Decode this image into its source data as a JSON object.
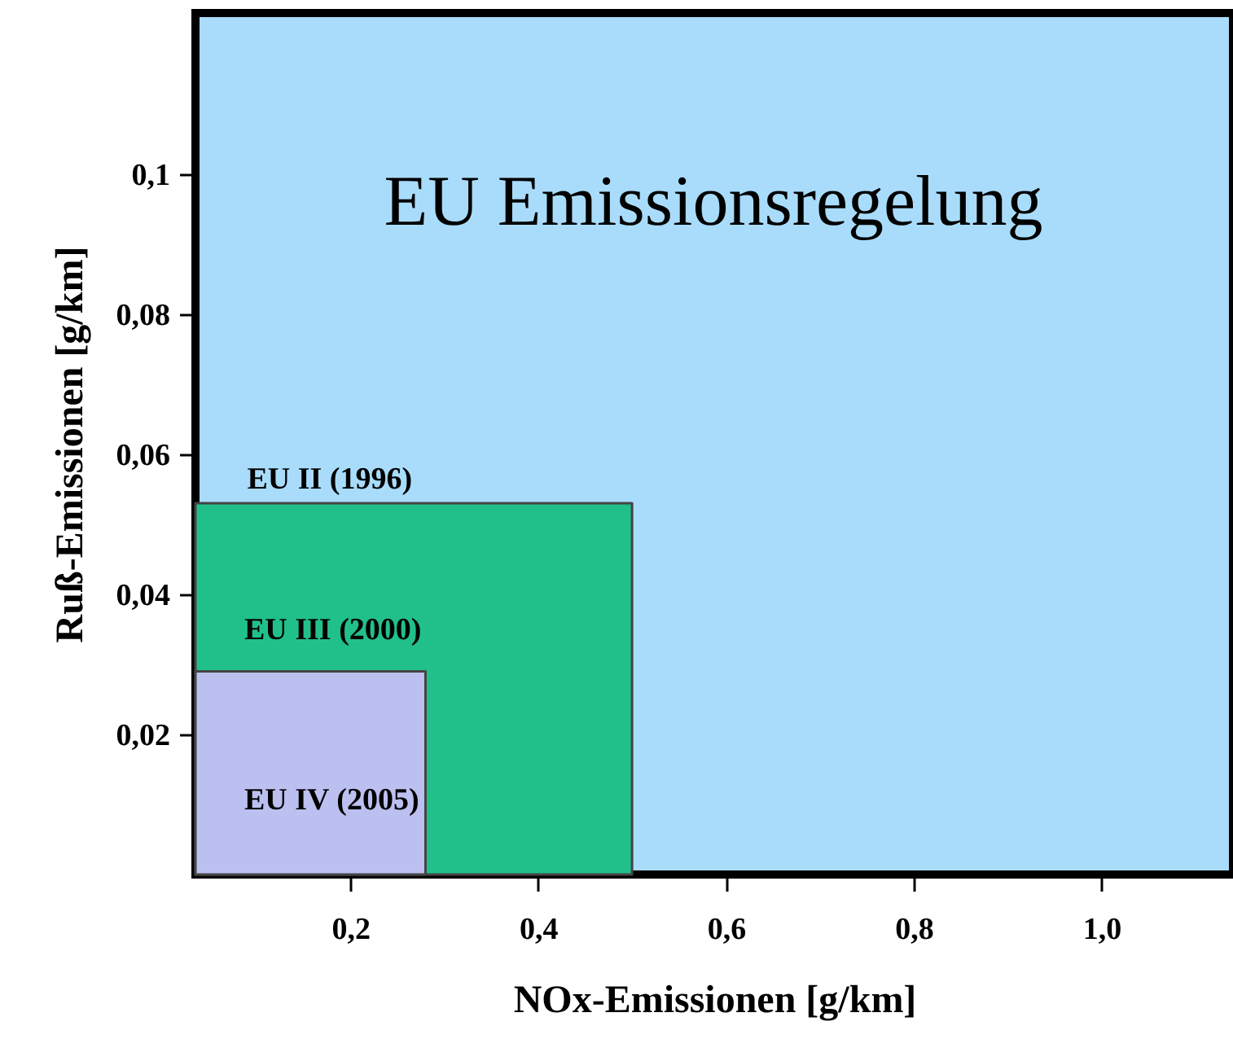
{
  "chart_data": {
    "type": "area",
    "title": "EU Emissionsregelung",
    "xlabel": "NOx-Emissionen [g/km]",
    "ylabel": "Ruß-Emissionen [g/km]",
    "xlim": [
      0.035,
      1.14
    ],
    "ylim": [
      0,
      0.123
    ],
    "xticks": [
      {
        "value": 0.2,
        "label": "0,2"
      },
      {
        "value": 0.4,
        "label": "0,4"
      },
      {
        "value": 0.6,
        "label": "0,6"
      },
      {
        "value": 0.8,
        "label": "0,8"
      },
      {
        "value": 1.0,
        "label": "1,0"
      }
    ],
    "yticks": [
      {
        "value": 0.02,
        "label": "0,02"
      },
      {
        "value": 0.04,
        "label": "0,04"
      },
      {
        "value": 0.06,
        "label": "0,06"
      },
      {
        "value": 0.08,
        "label": "0,08"
      },
      {
        "value": 0.1,
        "label": "0,1"
      }
    ],
    "series": [
      {
        "name": "EU III (2000)",
        "color": "#21c08a",
        "x": [
          0.035,
          0.5
        ],
        "values": [
          0.053,
          0.053
        ]
      },
      {
        "name": "EU IV (2005)",
        "color": "#bcc0f0",
        "x": [
          0.035,
          0.28
        ],
        "values": [
          0.029,
          0.029
        ]
      }
    ],
    "annotations": [
      {
        "text": "EU II (1996)",
        "x": 0.09,
        "y": 0.054
      }
    ]
  }
}
